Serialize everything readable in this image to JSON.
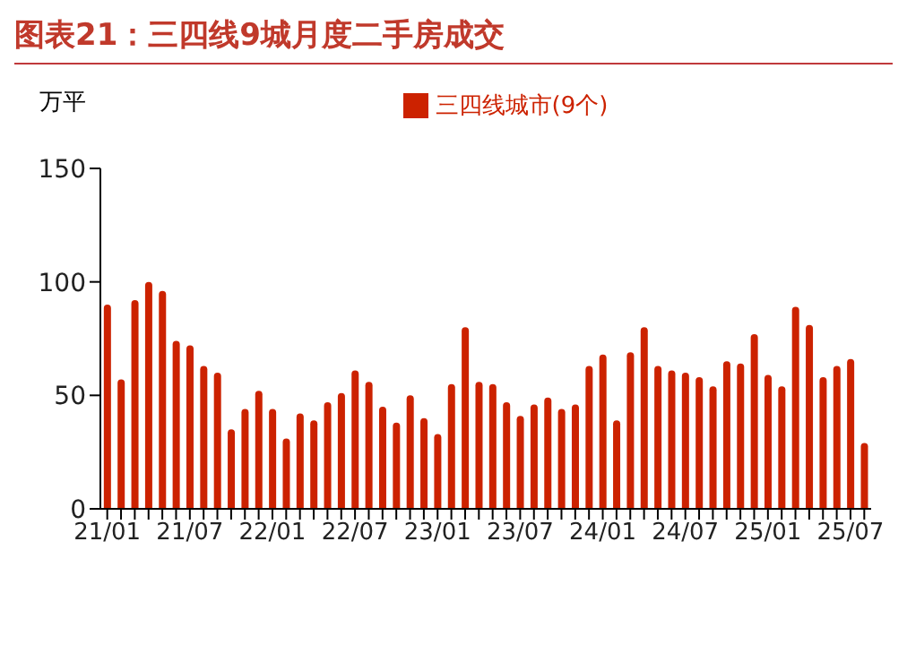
{
  "chart_data": {
    "type": "bar",
    "title": "图表21：三四线9城月度二手房成交",
    "ylabel": "万平",
    "categories": [
      "21/01",
      null,
      null,
      null,
      null,
      null,
      "21/07",
      null,
      null,
      null,
      null,
      null,
      "22/01",
      null,
      null,
      null,
      null,
      null,
      "22/07",
      null,
      null,
      null,
      null,
      null,
      "23/01",
      null,
      null,
      null,
      null,
      null,
      "23/07",
      null,
      null,
      null,
      null,
      null,
      "24/01",
      null,
      null,
      null,
      null,
      null,
      "24/07",
      null,
      null,
      null,
      null,
      null,
      "25/01",
      null,
      null,
      null,
      null,
      null,
      "25/07",
      null
    ],
    "series": [
      {
        "name": "三四线城市(9个)",
        "color": "#cc2200",
        "values": [
          90,
          57,
          92,
          100,
          96,
          74,
          72,
          63,
          60,
          35,
          44,
          52,
          44,
          31,
          42,
          39,
          47,
          51,
          61,
          56,
          45,
          38,
          50,
          40,
          33,
          55,
          80,
          56,
          55,
          47,
          41,
          46,
          49,
          44,
          46,
          63,
          68,
          39,
          69,
          80,
          63,
          61,
          60,
          58,
          54,
          65,
          64,
          77,
          59,
          54,
          89,
          81,
          58,
          63,
          66,
          29
        ]
      }
    ],
    "ylim": [
      0,
      150
    ],
    "yticks": [
      0,
      50,
      100,
      150
    ],
    "grid": false,
    "legend": "top"
  }
}
